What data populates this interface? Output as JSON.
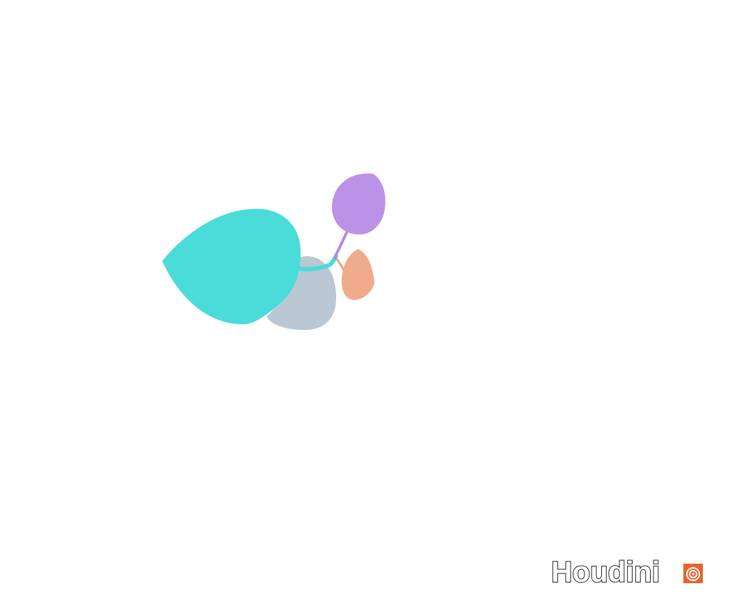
{
  "viewport": {
    "background": "#ffffff"
  },
  "leaves": [
    {
      "name": "large-leaf",
      "color": "#4adcd9"
    },
    {
      "name": "back-leaf",
      "color": "#b9c8d3"
    },
    {
      "name": "purple-leaf",
      "color": "#bb92e8"
    },
    {
      "name": "orange-leaf",
      "color": "#f0ab8b"
    }
  ],
  "stems": [
    {
      "name": "purple-stem",
      "color": "#b08be3"
    },
    {
      "name": "orange-stem",
      "color": "#e9a27f"
    },
    {
      "name": "teal-stem",
      "color": "#4adcd9"
    }
  ],
  "watermark": {
    "text": "Houdini",
    "logo_fill": "#e8632a",
    "logo_icon": "houdini-spiral-icon"
  }
}
